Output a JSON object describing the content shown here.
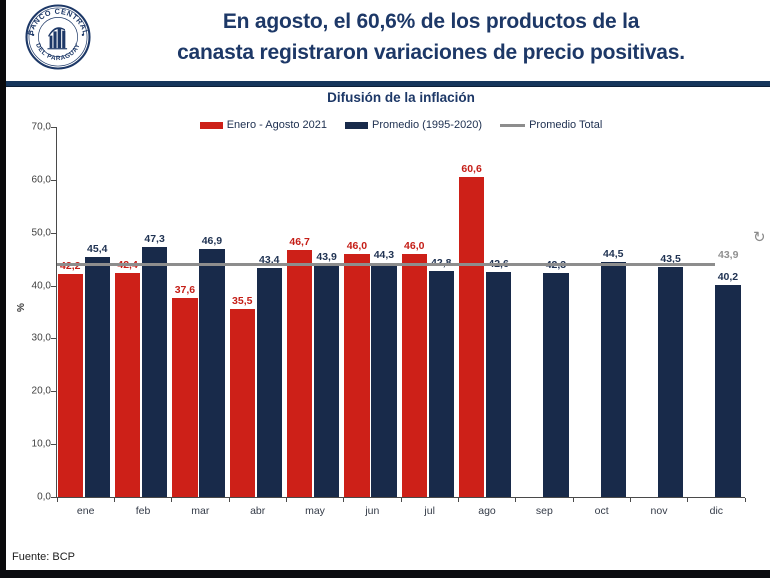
{
  "page": {
    "bg": "#ffffff",
    "left_strip_color": "#0a0a0c",
    "bottom_strip_color": "#0b0c10",
    "divider_color": "#16365c"
  },
  "header": {
    "logo": {
      "ring_text_top": "BANCO CENTRAL",
      "ring_text_bottom": "DEL PARAGUAY"
    },
    "title_line1": "En agosto, el 60,6% de los productos de la",
    "title_line2": "canasta registraron variaciones de precio positivas."
  },
  "footer": {
    "source": "Fuente: BCP"
  },
  "overlay": {
    "cursor_glyph": "↻"
  },
  "chart_data": {
    "type": "bar",
    "title": "Difusión de la inflación",
    "ylabel": "%",
    "ylim": [
      0,
      70
    ],
    "ytick_step": 10,
    "ytick_labels": [
      "0,0",
      "10,0",
      "20,0",
      "30,0",
      "40,0",
      "50,0",
      "60,0",
      "70,0"
    ],
    "grid": false,
    "legend_position": "top",
    "decimal_separator": ",",
    "categories": [
      "ene",
      "feb",
      "mar",
      "abr",
      "may",
      "jun",
      "jul",
      "ago",
      "sep",
      "oct",
      "nov",
      "dic"
    ],
    "series": [
      {
        "name": "Enero - Agosto 2021",
        "color": "#cd2018",
        "label_color": "#c51e17",
        "values": [
          42.2,
          42.4,
          37.6,
          35.5,
          46.7,
          46.0,
          46.0,
          60.6,
          null,
          null,
          null,
          null
        ]
      },
      {
        "name": "Promedio (1995-2020)",
        "color": "#182a4a",
        "label_color": "#1f3252",
        "values": [
          45.4,
          47.3,
          46.9,
          43.4,
          43.9,
          44.3,
          42.8,
          42.6,
          42.3,
          44.5,
          43.5,
          40.2
        ]
      }
    ],
    "reference_line": {
      "name": "Promedio Total",
      "value": 43.9,
      "label": "43,9",
      "color": "#8d8d8d",
      "label_color": "#909090"
    }
  }
}
